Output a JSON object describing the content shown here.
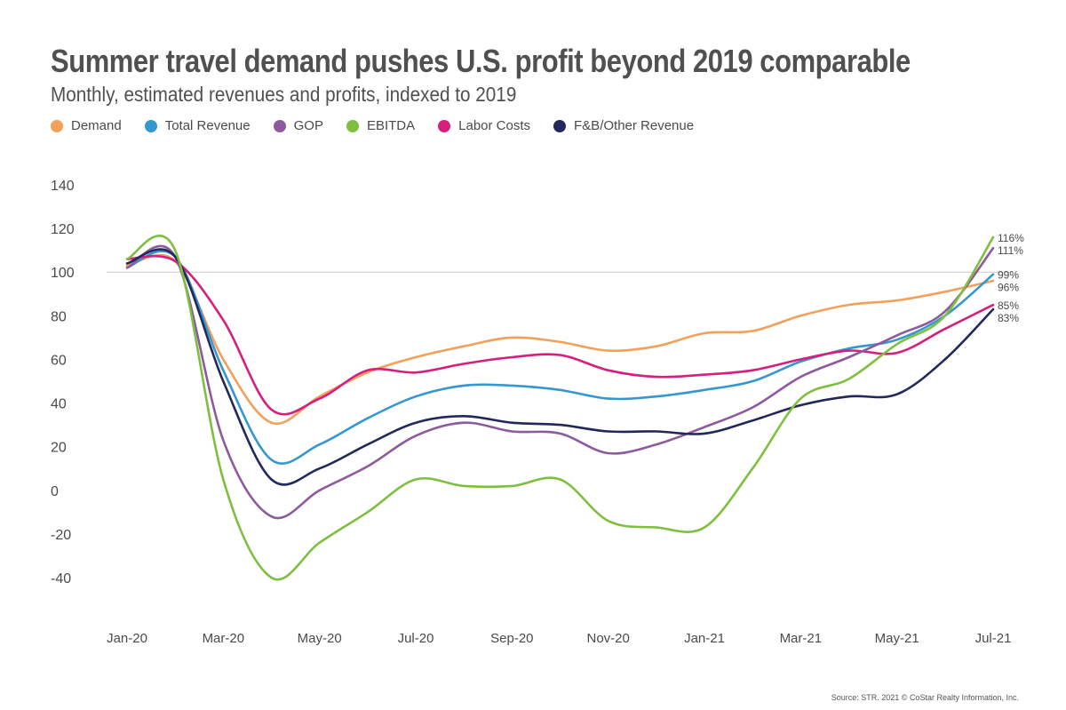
{
  "chart_data": {
    "type": "line",
    "title": "Summer travel demand pushes U.S. profit beyond 2019 comparable",
    "subtitle": "Monthly, estimated revenues and profits, indexed to 2019",
    "xlabel": "",
    "ylabel": "",
    "ylim": [
      -40,
      140
    ],
    "yticks": [
      140,
      120,
      100,
      80,
      60,
      40,
      20,
      0,
      -20,
      -40
    ],
    "yticks_text": [
      "140",
      "120",
      "100",
      "80",
      "60",
      "40",
      "20",
      "0",
      "-20",
      "-40"
    ],
    "reference_line": 100,
    "grid": false,
    "legend_position": "top-left",
    "x": [
      "Jan-20",
      "Feb-20",
      "Mar-20",
      "Apr-20",
      "May-20",
      "Jun-20",
      "Jul-20",
      "Aug-20",
      "Sep-20",
      "Oct-20",
      "Nov-20",
      "Dec-20",
      "Jan-21",
      "Feb-21",
      "Mar-21",
      "Apr-21",
      "May-21",
      "Jun-21",
      "Jul-21"
    ],
    "xtick_labels": [
      "Jan-20",
      "Mar-20",
      "May-20",
      "Jul-20",
      "Sep-20",
      "Nov-20",
      "Jan-21",
      "Mar-21",
      "May-21",
      "Jul-21"
    ],
    "series": [
      {
        "name": "Demand",
        "color": "#f2a05a",
        "end_label": "96%",
        "values": [
          103,
          105,
          60,
          31,
          43,
          54,
          61,
          66,
          70,
          68,
          64,
          66,
          72,
          73,
          80,
          85,
          87,
          91,
          96
        ]
      },
      {
        "name": "Total Revenue",
        "color": "#3597d0",
        "end_label": "99%",
        "values": [
          102,
          107,
          55,
          14,
          21,
          33,
          43,
          48,
          48,
          46,
          42,
          43,
          46,
          50,
          59,
          65,
          69,
          80,
          99
        ]
      },
      {
        "name": "GOP",
        "color": "#8d5a9e",
        "end_label": "111%",
        "values": [
          102,
          107,
          23,
          -12,
          0,
          11,
          25,
          31,
          27,
          26,
          17,
          21,
          29,
          38,
          52,
          61,
          71,
          82,
          111
        ]
      },
      {
        "name": "EBITDA",
        "color": "#7fbf3f",
        "end_label": "116%",
        "values": [
          106,
          110,
          5,
          -40,
          -24,
          -10,
          5,
          2,
          2,
          5,
          -14,
          -17,
          -17,
          10,
          42,
          51,
          67,
          80,
          116
        ]
      },
      {
        "name": "Labor Costs",
        "color": "#d61f7c",
        "end_label": "85%",
        "values": [
          106,
          105,
          78,
          37,
          42,
          55,
          54,
          58,
          61,
          62,
          55,
          52,
          53,
          55,
          60,
          64,
          63,
          74,
          85
        ]
      },
      {
        "name": "F&B/Other Revenue",
        "color": "#23285a",
        "end_label": "83%",
        "values": [
          104,
          107,
          50,
          5,
          10,
          21,
          31,
          34,
          31,
          30,
          27,
          27,
          26,
          32,
          39,
          43,
          44,
          60,
          83
        ]
      }
    ]
  },
  "source": "Source: STR. 2021 © CoStar Realty Information, Inc."
}
